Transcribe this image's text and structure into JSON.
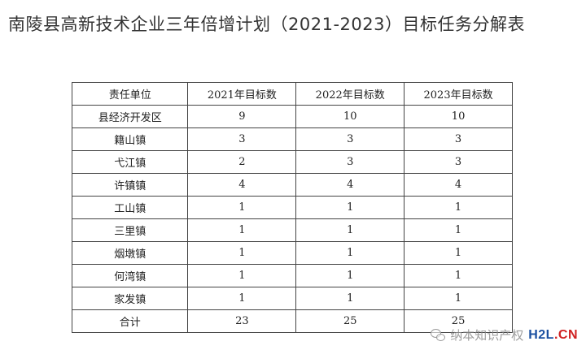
{
  "title": "南陵县高新技术企业三年倍增计划（2021-2023）目标任务分解表",
  "table": {
    "headers": [
      "责任单位",
      "2021年目标数",
      "2022年目标数",
      "2023年目标数"
    ],
    "rows": [
      [
        "县经济开发区",
        "9",
        "10",
        "10"
      ],
      [
        "籍山镇",
        "3",
        "3",
        "3"
      ],
      [
        "弋江镇",
        "2",
        "3",
        "3"
      ],
      [
        "许镇镇",
        "4",
        "4",
        "4"
      ],
      [
        "工山镇",
        "1",
        "1",
        "1"
      ],
      [
        "三里镇",
        "1",
        "1",
        "1"
      ],
      [
        "烟墩镇",
        "1",
        "1",
        "1"
      ],
      [
        "何湾镇",
        "1",
        "1",
        "1"
      ],
      [
        "家发镇",
        "1",
        "1",
        "1"
      ],
      [
        "合计",
        "23",
        "25",
        "25"
      ]
    ]
  },
  "watermark": {
    "account": "纳本知识产权",
    "logo_part1": "H2L",
    "logo_part2": ".CN",
    "icon": "wechat-icon"
  }
}
